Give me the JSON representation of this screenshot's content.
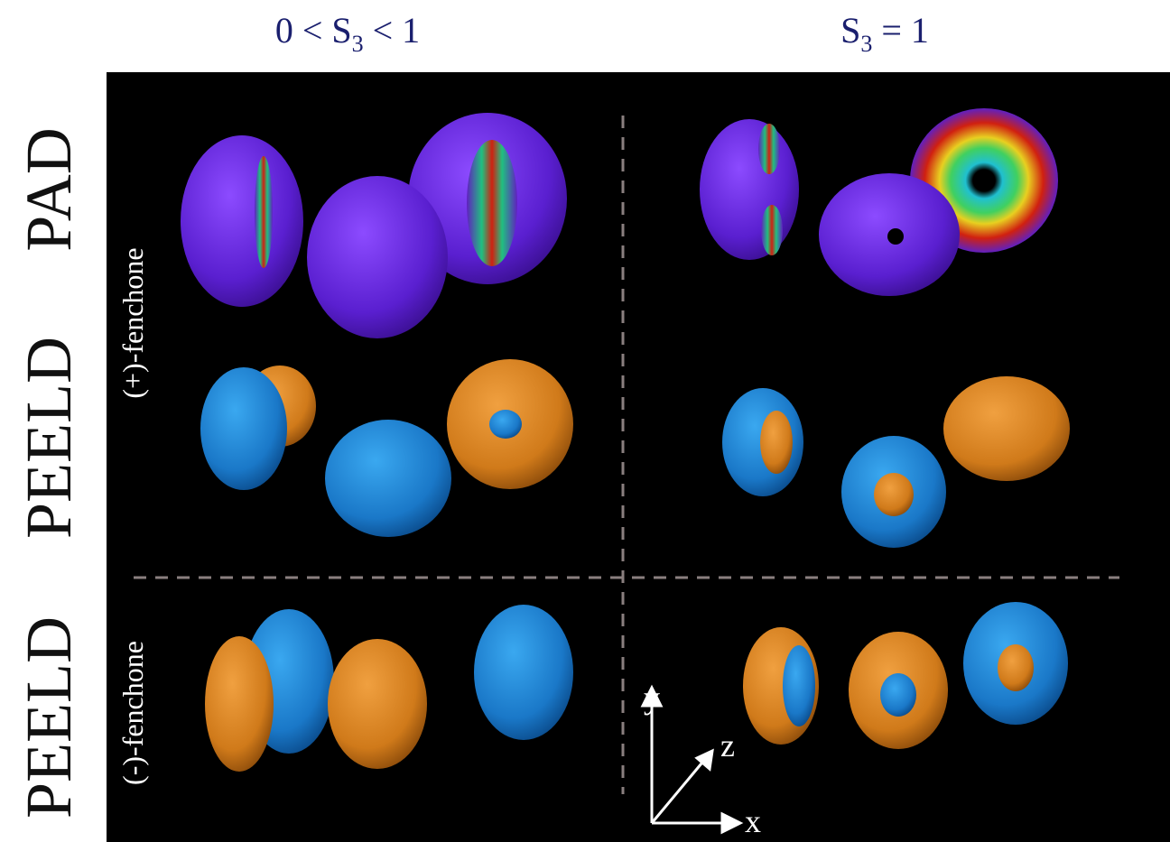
{
  "column_headers": [
    {
      "before": "0 < S",
      "subscript": "3",
      "after": " < 1"
    },
    {
      "before": "S",
      "subscript": "3",
      "after": " = 1"
    }
  ],
  "row_labels": [
    "PAD",
    "PEELD",
    "PEELD"
  ],
  "molecule_labels": [
    "(+)-fenchone",
    "(-)-fenchone"
  ],
  "axes": {
    "y": "y",
    "z": "z",
    "x": "x"
  }
}
